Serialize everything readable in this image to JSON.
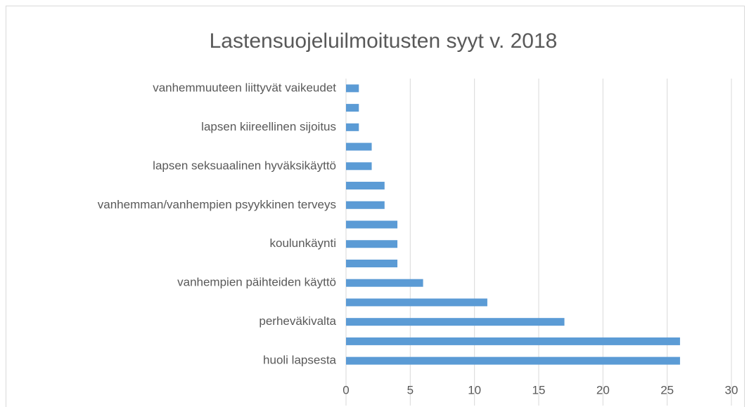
{
  "chart_data": {
    "type": "barh",
    "title": "Lastensuojeluilmoitusten syyt v. 2018",
    "categories": [
      "huoli lapsesta",
      null,
      "perheväkivalta",
      null,
      "vanhempien päihteiden käyttö",
      null,
      "koulunkäynti",
      null,
      "vanhemman/vanhempien psyykkinen terveys",
      null,
      "lapsen seksuaalinen hyväksikäyttö",
      null,
      "lapsen kiireellinen sijoitus",
      null,
      "vanhemmuuteen liittyvät vaikeudet"
    ],
    "values": [
      26,
      26,
      17,
      11,
      6,
      4,
      4,
      4,
      3,
      3,
      2,
      2,
      1,
      1,
      1
    ],
    "color": "#5b9bd5",
    "xlim": [
      0,
      30
    ],
    "xticks": [
      0,
      5,
      10,
      15,
      20,
      25,
      30
    ],
    "grid": true
  }
}
